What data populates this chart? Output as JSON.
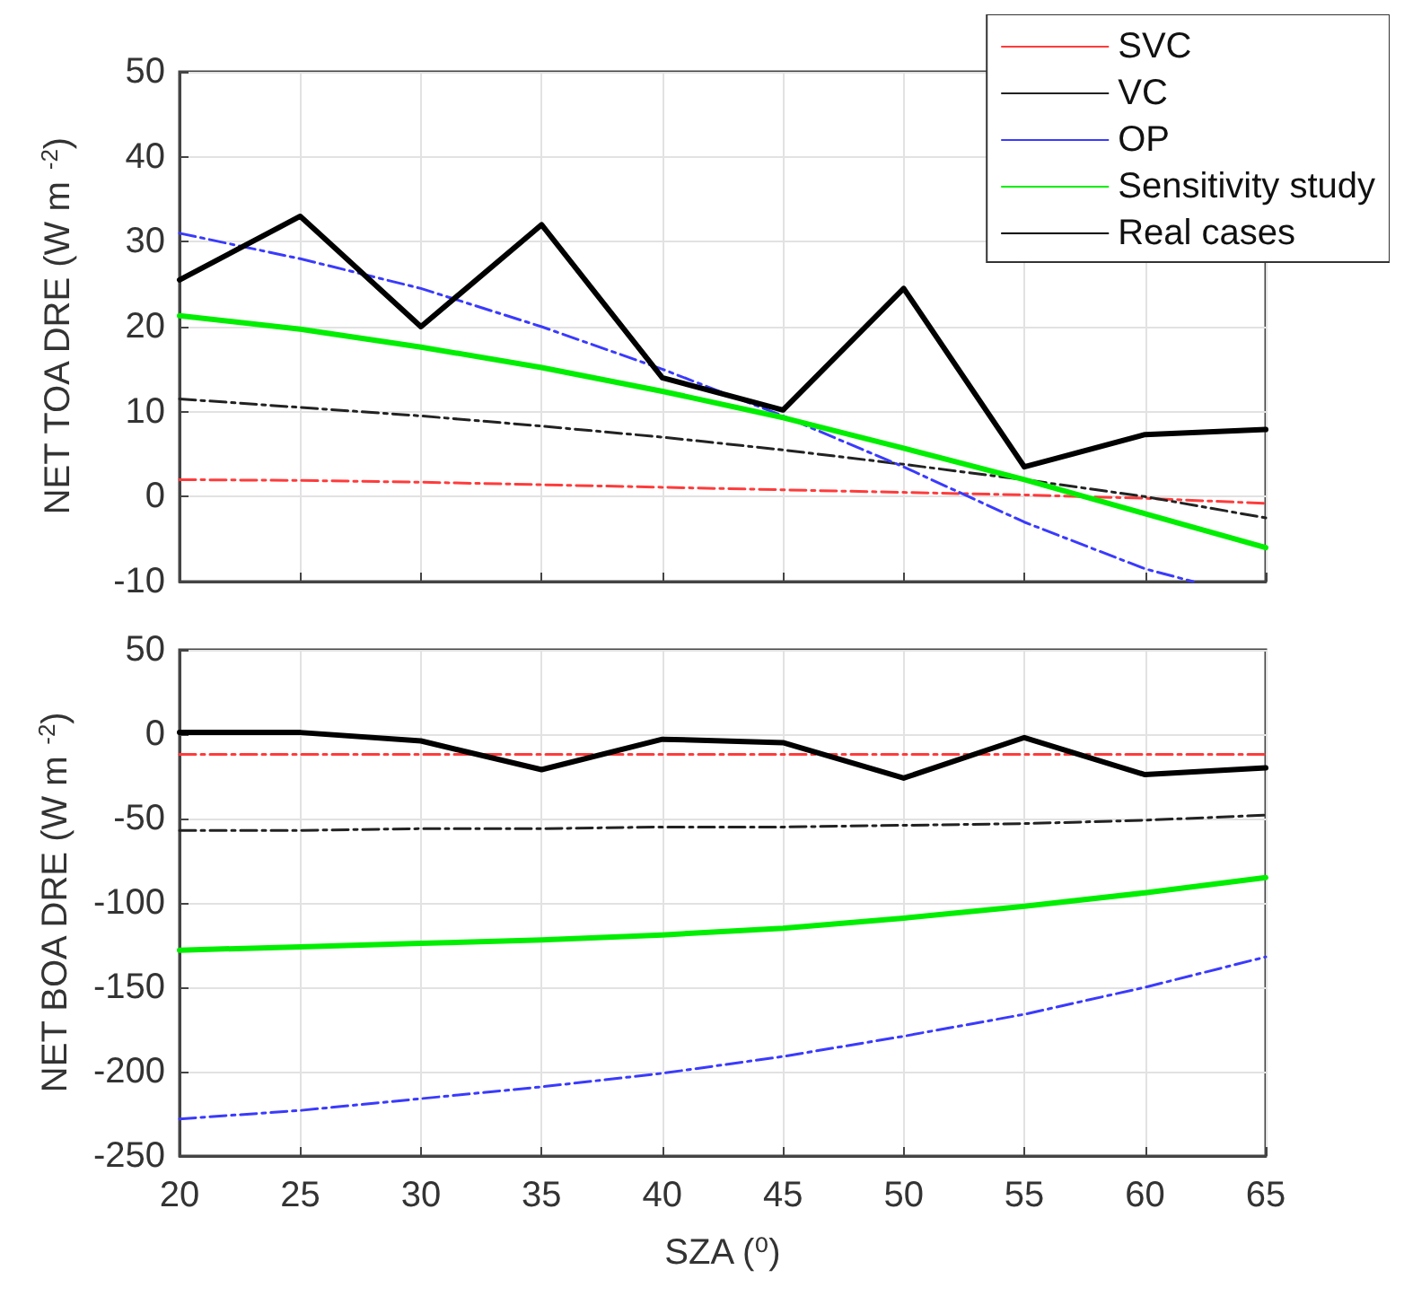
{
  "chart_data": [
    {
      "type": "line",
      "ylabel": "NET TOA DRE (W m $^{-2}$)",
      "x": [
        20,
        25,
        30,
        35,
        40,
        45,
        50,
        55,
        60,
        65
      ],
      "xlim": [
        20,
        65
      ],
      "xticks": [
        20,
        25,
        30,
        35,
        40,
        45,
        50,
        55,
        60,
        65
      ],
      "ylim": [
        -10,
        50
      ],
      "yticks": [
        -10,
        0,
        10,
        20,
        30,
        40,
        50
      ],
      "grid": true,
      "legend": "top right",
      "tick_labels": "y",
      "marker": "none",
      "series": [
        {
          "name": "SVC",
          "color": "#ff3b3b",
          "line_style": "dashed",
          "values": [
            2,
            1.9,
            1.7,
            1.4,
            1.1,
            0.8,
            0.5,
            0.2,
            -0.2,
            -0.8
          ]
        },
        {
          "name": "VC",
          "color": "#222222",
          "line_style": "dashed",
          "values": [
            11.5,
            10.5,
            9.5,
            8.3,
            7,
            5.5,
            3.8,
            2,
            0,
            -2.5
          ]
        },
        {
          "name": "OP",
          "color": "#3a3aff",
          "line_style": "dashed",
          "x": [
            20,
            25,
            30,
            35,
            40,
            45,
            50,
            55,
            60,
            62
          ],
          "values": [
            31,
            28,
            24.5,
            20,
            15,
            9.5,
            3.5,
            -3,
            -8.5,
            -10
          ]
        },
        {
          "name": "Sensitivity study",
          "color": "#00ee00",
          "line_style": "solid",
          "values": [
            21.3,
            19.7,
            17.6,
            15.2,
            12.4,
            9.3,
            5.7,
            2,
            -2,
            -6
          ]
        },
        {
          "name": "Real cases",
          "color": "#000000",
          "line_style": "solid",
          "values": [
            25.5,
            33,
            20,
            32,
            14,
            10.2,
            24.5,
            3.5,
            7.3,
            7.9
          ]
        }
      ]
    },
    {
      "type": "line",
      "ylabel": "NET BOA DRE (W m $^{-2}$)",
      "xlabel": "SZA (⁰)",
      "x": [
        20,
        25,
        30,
        35,
        40,
        45,
        50,
        55,
        60,
        65
      ],
      "xlim": [
        20,
        65
      ],
      "xticks": [
        20,
        25,
        30,
        35,
        40,
        45,
        50,
        55,
        60,
        65
      ],
      "ylim": [
        -250,
        50
      ],
      "yticks": [
        -250,
        -200,
        -150,
        -100,
        -50,
        0,
        50
      ],
      "grid": true,
      "marker": "none",
      "series": [
        {
          "color": "#ff3b3b",
          "line_style": "dashed",
          "values": [
            -12,
            -12,
            -12,
            -12,
            -12,
            -12,
            -12,
            -12,
            -12,
            -12
          ]
        },
        {
          "color": "#222222",
          "line_style": "dashed",
          "values": [
            -57,
            -57,
            -56,
            -56,
            -55,
            -55,
            -54,
            -53,
            -51,
            -48
          ]
        },
        {
          "color": "#3a3aff",
          "line_style": "dashed",
          "values": [
            -228,
            -223,
            -216,
            -209,
            -201,
            -191,
            -179,
            -166,
            -150,
            -132
          ]
        },
        {
          "color": "#00ee00",
          "line_style": "solid",
          "values": [
            -128,
            -126,
            -124,
            -122,
            -119,
            -115,
            -109,
            -102,
            -94,
            -85
          ]
        },
        {
          "color": "#000000",
          "line_style": "solid",
          "values": [
            1,
            1,
            -4,
            -21,
            -3,
            -5,
            -26,
            -2,
            -24,
            -20
          ]
        }
      ]
    }
  ]
}
